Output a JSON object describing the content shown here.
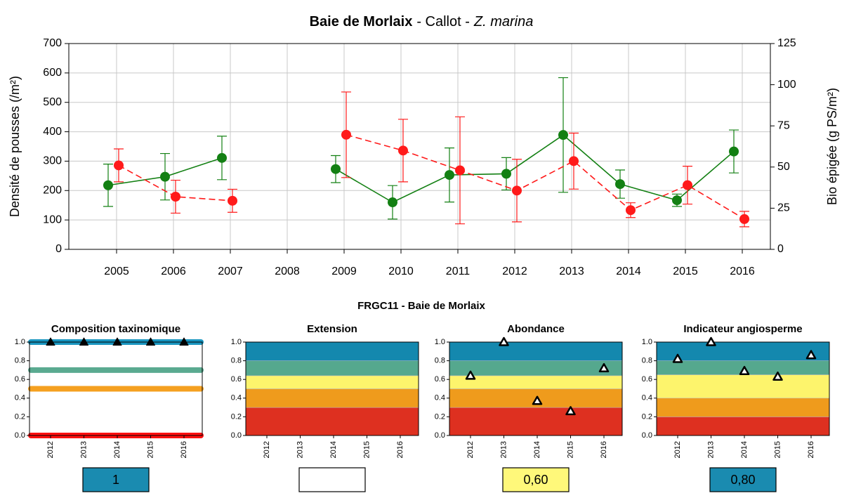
{
  "section_title": "FRGC11 - Baie de Morlaix",
  "chart_data": [
    {
      "type": "line",
      "title_parts": [
        "Baie de Morlaix",
        "- Callot -",
        "Z. marina"
      ],
      "categories": [
        "2005",
        "2006",
        "2007",
        "2008",
        "2009",
        "2010",
        "2011",
        "2012",
        "2013",
        "2014",
        "2015",
        "2016"
      ],
      "ylabel": "Densité de pousses (/m²)",
      "y2label": "Bio épigée (g PS/m²)",
      "ylim": [
        0,
        700
      ],
      "yticks": [
        0,
        100,
        200,
        300,
        400,
        500,
        600,
        700
      ],
      "y2lim": [
        0,
        125
      ],
      "y2ticks": [
        0,
        25,
        50,
        75,
        100,
        125
      ],
      "grid": true,
      "series": [
        {
          "color": "#138013",
          "line": "solid",
          "axis": "y",
          "values": [
            218,
            247,
            311,
            null,
            273,
            160,
            253,
            257,
            389,
            222,
            167,
            333
          ],
          "errors": [
            72,
            79,
            74,
            null,
            46,
            57,
            92,
            55,
            195,
            48,
            21,
            73
          ]
        },
        {
          "color": "#ff1a1a",
          "line": "dashed",
          "axis": "y2",
          "values": [
            51,
            32,
            29.5,
            null,
            69.6,
            60,
            48,
            35.7,
            53.6,
            23.8,
            39,
            18.4
          ],
          "errors": [
            10,
            10,
            7,
            null,
            26,
            19,
            32.5,
            19,
            17,
            4.5,
            11.5,
            4.7
          ]
        }
      ]
    },
    {
      "type": "scatter",
      "title": "Composition taxinomique",
      "categories": [
        "2012",
        "2013",
        "2014",
        "2015",
        "2016"
      ],
      "ylim": [
        0,
        1
      ],
      "yticks": [
        {
          "value": 0,
          "label": "0.0"
        },
        {
          "value": 0.2,
          "label": "0.2"
        },
        {
          "value": 0.4,
          "label": "0.4"
        },
        {
          "value": 0.6,
          "label": "0.6"
        },
        {
          "value": 0.8,
          "label": "0.8"
        },
        {
          "value": 1,
          "label": "1.0"
        }
      ],
      "levels": [
        {
          "value": 1,
          "color": "#1a96c0"
        },
        {
          "value": 0.7,
          "color": "#5aaa90"
        },
        {
          "value": 0.5,
          "color": "#f5a020"
        },
        {
          "value": 0,
          "color": "#ff1010"
        }
      ],
      "marker": "filled",
      "values": [
        1,
        1,
        1,
        1,
        1
      ],
      "result": "1",
      "result_color": "#1a8bb0",
      "result_text_color": "#ffffff"
    },
    {
      "type": "scatter",
      "title": "Extension",
      "categories": [
        "2012",
        "2013",
        "2014",
        "2015",
        "2016"
      ],
      "ylim": [
        0,
        1
      ],
      "yticks": [
        {
          "value": 0,
          "label": "0.0"
        },
        {
          "value": 0.2,
          "label": "0.2"
        },
        {
          "value": 0.4,
          "label": "0.4"
        },
        {
          "value": 0.6,
          "label": "0.6"
        },
        {
          "value": 0.8,
          "label": "0.8"
        },
        {
          "value": 1,
          "label": "1.0"
        }
      ],
      "bands": [
        {
          "from": 0,
          "to": 0.3,
          "color": "#de3020"
        },
        {
          "from": 0.3,
          "to": 0.5,
          "color": "#ef9b1c"
        },
        {
          "from": 0.5,
          "to": 0.64,
          "color": "#fdf46c"
        },
        {
          "from": 0.64,
          "to": 0.8,
          "color": "#55a88e"
        },
        {
          "from": 0.8,
          "to": 1,
          "color": "#1488ae"
        }
      ],
      "marker": "hollow",
      "values": [
        null,
        null,
        null,
        null,
        null
      ]
    },
    {
      "type": "scatter",
      "title": "Abondance",
      "categories": [
        "2012",
        "2013",
        "2014",
        "2015",
        "2016"
      ],
      "ylim": [
        0,
        1
      ],
      "yticks": [
        {
          "value": 0,
          "label": "0.0"
        },
        {
          "value": 0.2,
          "label": "0.2"
        },
        {
          "value": 0.4,
          "label": "0.4"
        },
        {
          "value": 0.6,
          "label": "0.6"
        },
        {
          "value": 0.8,
          "label": "0.8"
        },
        {
          "value": 1,
          "label": "1.0"
        }
      ],
      "bands": [
        {
          "from": 0,
          "to": 0.3,
          "color": "#de3020"
        },
        {
          "from": 0.3,
          "to": 0.5,
          "color": "#ef9b1c"
        },
        {
          "from": 0.5,
          "to": 0.64,
          "color": "#fdf46c"
        },
        {
          "from": 0.64,
          "to": 0.8,
          "color": "#55a88e"
        },
        {
          "from": 0.8,
          "to": 1,
          "color": "#1488ae"
        }
      ],
      "marker": "hollow",
      "values": [
        0.64,
        1,
        0.37,
        0.26,
        0.72
      ],
      "result": "0,60",
      "result_color": "#fff87a",
      "result_text_color": "#000000"
    },
    {
      "type": "scatter",
      "title": "Indicateur angiosperme",
      "categories": [
        "2012",
        "2013",
        "2014",
        "2015",
        "2016"
      ],
      "ylim": [
        0,
        1
      ],
      "yticks": [
        {
          "value": 0,
          "label": "0.0"
        },
        {
          "value": 0.2,
          "label": "0.2"
        },
        {
          "value": 0.4,
          "label": "0.4"
        },
        {
          "value": 0.6,
          "label": "0.6"
        },
        {
          "value": 0.8,
          "label": "0.8"
        },
        {
          "value": 1,
          "label": "1.0"
        }
      ],
      "bands": [
        {
          "from": 0,
          "to": 0.2,
          "color": "#de3020"
        },
        {
          "from": 0.2,
          "to": 0.4,
          "color": "#ef9b1c"
        },
        {
          "from": 0.4,
          "to": 0.65,
          "color": "#fdf46c"
        },
        {
          "from": 0.65,
          "to": 0.8,
          "color": "#55a88e"
        },
        {
          "from": 0.8,
          "to": 1,
          "color": "#1488ae"
        }
      ],
      "marker": "hollow",
      "values": [
        0.82,
        1,
        0.69,
        0.63,
        0.86
      ],
      "result": "0,80",
      "result_color": "#1a8bb0",
      "result_text_color": "#ffffff"
    }
  ]
}
